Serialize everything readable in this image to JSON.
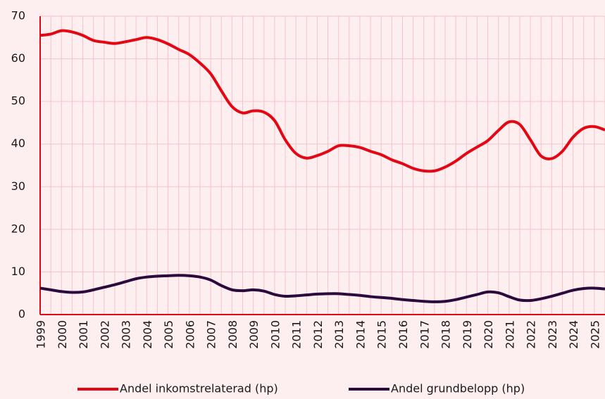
{
  "chart_data": {
    "type": "line",
    "categories": [
      "1999",
      null,
      "2000",
      null,
      "2001",
      null,
      "2002",
      null,
      "2003",
      null,
      "2004",
      null,
      "2005",
      null,
      "2006",
      null,
      "2007",
      null,
      "2008",
      null,
      "2009",
      null,
      "2010",
      null,
      "2011",
      null,
      "2012",
      null,
      "2013",
      null,
      "2014",
      null,
      "2015",
      null,
      "2016",
      null,
      "2017",
      null,
      "2018",
      null,
      "2019",
      null,
      "2020",
      null,
      "2021",
      null,
      "2022",
      null,
      "2023",
      null,
      "2024",
      null,
      "2025",
      null
    ],
    "series": [
      {
        "name": "Andel inkomstrelaterad (hp)",
        "color": "#e30613",
        "values": [
          65.5,
          65.8,
          66.6,
          66.3,
          65.5,
          64.3,
          63.9,
          63.6,
          64.0,
          64.5,
          65.0,
          64.5,
          63.5,
          62.2,
          61.0,
          59.0,
          56.5,
          52.5,
          48.8,
          47.3,
          47.8,
          47.5,
          45.5,
          41.0,
          37.8,
          36.7,
          37.3,
          38.3,
          39.6,
          39.6,
          39.2,
          38.3,
          37.5,
          36.3,
          35.4,
          34.3,
          33.7,
          33.7,
          34.6,
          36.0,
          37.8,
          39.3,
          40.8,
          43.2,
          45.2,
          44.6,
          41.0,
          37.2,
          36.6,
          38.3,
          41.6,
          43.7,
          44.1,
          43.3
        ]
      },
      {
        "name": "Andel grundbelopp (hp)",
        "color": "#2d0a3d",
        "values": [
          6.2,
          5.8,
          5.4,
          5.2,
          5.3,
          5.8,
          6.4,
          7.0,
          7.7,
          8.4,
          8.8,
          9.0,
          9.1,
          9.2,
          9.1,
          8.8,
          8.1,
          6.8,
          5.8,
          5.6,
          5.8,
          5.5,
          4.7,
          4.3,
          4.4,
          4.6,
          4.8,
          4.9,
          4.9,
          4.7,
          4.5,
          4.2,
          4.0,
          3.8,
          3.5,
          3.3,
          3.1,
          3.0,
          3.1,
          3.5,
          4.1,
          4.7,
          5.3,
          5.1,
          4.2,
          3.4,
          3.3,
          3.7,
          4.3,
          5.0,
          5.7,
          6.1,
          6.2,
          6.0
        ]
      }
    ],
    "ylim": [
      0,
      70
    ],
    "yticks": [
      0,
      10,
      20,
      30,
      40,
      50,
      60,
      70
    ],
    "grid": true,
    "legend": "bottom"
  }
}
